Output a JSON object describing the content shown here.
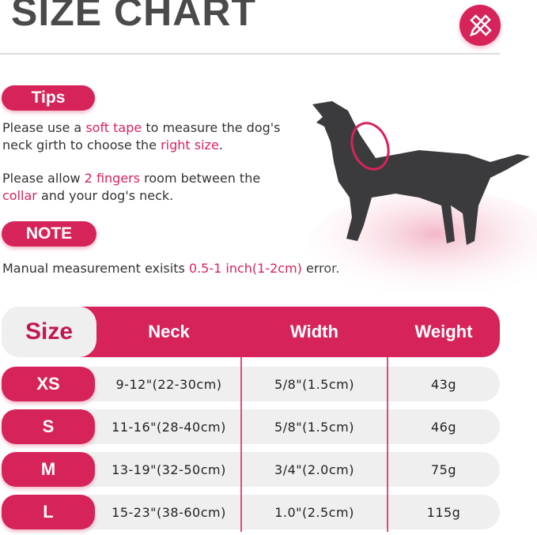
{
  "title": "SIZE CHART",
  "badge_icon": "ruler-pencil-icon",
  "accent": "#d6245a",
  "tips": {
    "label": "Tips",
    "p1": [
      "Please use a ",
      "soft tape",
      " to measure the dog's"
    ],
    "p1b": [
      "neck girth to choose the ",
      "right size",
      "."
    ],
    "p2": [
      "Please allow ",
      "2 fingers",
      " room between the"
    ],
    "p2b": [
      "",
      "collar",
      " and your dog's neck."
    ]
  },
  "note": {
    "label": "NOTE",
    "text": [
      "Manual measurement exisits ",
      "0.5-1 inch(1-2cm)",
      " error."
    ]
  },
  "table": {
    "headers": [
      "Size",
      "Neck",
      "Width",
      "Weight"
    ],
    "rows": [
      {
        "size": "XS",
        "neck": "9-12\"(22-30cm)",
        "width": "5/8\"(1.5cm)",
        "weight": "43g"
      },
      {
        "size": "S",
        "neck": "11-16\"(28-40cm)",
        "width": "5/8\"(1.5cm)",
        "weight": "46g"
      },
      {
        "size": "M",
        "neck": "13-19\"(32-50cm)",
        "width": "3/4\"(2.0cm)",
        "weight": "75g"
      },
      {
        "size": "L",
        "neck": "15-23\"(38-60cm)",
        "width": "1.0\"(2.5cm)",
        "weight": "115g"
      }
    ]
  }
}
